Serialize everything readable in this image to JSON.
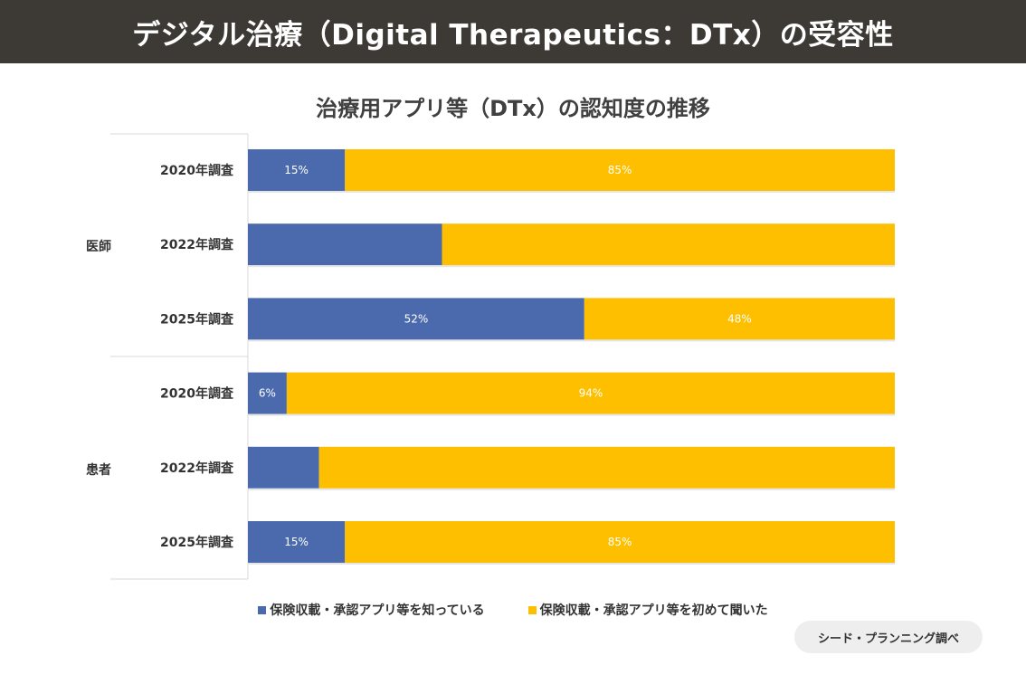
{
  "header": {
    "title": "デジタル治療（Digital Therapeutics：DTx）の受容性"
  },
  "source_label": "シード・プランニング調べ",
  "colors": {
    "known": "#4a6aad",
    "first_time": "#fdbf00",
    "header_bg": "#3d3935"
  },
  "chart_data": {
    "type": "bar",
    "orientation": "horizontal",
    "stacked": true,
    "percent": true,
    "title": "治療用アプリ等（DTx）の認知度の推移",
    "groups": [
      {
        "name": "医師",
        "categories": [
          "2020年調査",
          "2022年調査",
          "2025年調査"
        ]
      },
      {
        "name": "患者",
        "categories": [
          "2020年調査",
          "2022年調査",
          "2025年調査"
        ]
      }
    ],
    "series": [
      {
        "name": "保険収載・承認アプリ等を知っている",
        "values": [
          15,
          30,
          52,
          6,
          11,
          15
        ],
        "labels": [
          "15%",
          "",
          "52%",
          "6%",
          "",
          "15%"
        ]
      },
      {
        "name": "保険収載・承認アプリ等を初めて聞いた",
        "values": [
          85,
          70,
          48,
          94,
          89,
          85
        ],
        "labels": [
          "85%",
          "",
          "48%",
          "94%",
          "",
          "85%"
        ]
      }
    ],
    "xlim": [
      0,
      100
    ],
    "legend_position": "bottom"
  }
}
